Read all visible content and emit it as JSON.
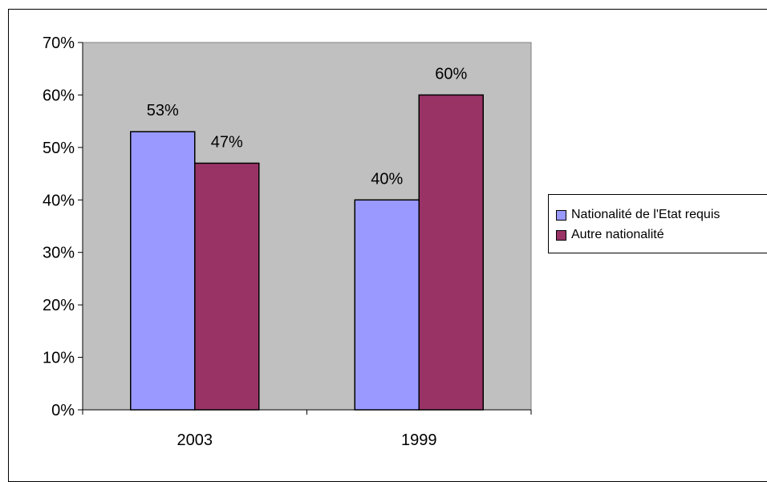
{
  "chart_data": {
    "type": "bar",
    "categories": [
      "2003",
      "1999"
    ],
    "series": [
      {
        "name": "Nationalité de l'Etat requis",
        "values": [
          53,
          40
        ],
        "color": "#9999ff"
      },
      {
        "name": "Autre nationalité",
        "values": [
          47,
          60
        ],
        "color": "#993366"
      }
    ],
    "data_labels": [
      [
        "53%",
        "40%"
      ],
      [
        "47%",
        "60%"
      ]
    ],
    "y_ticks": [
      "0%",
      "10%",
      "20%",
      "30%",
      "40%",
      "50%",
      "60%",
      "70%"
    ],
    "ylim": [
      0,
      70
    ],
    "y_step": 10,
    "plot_background": "#c0c0c0",
    "grid": false,
    "legend_position": "right"
  }
}
